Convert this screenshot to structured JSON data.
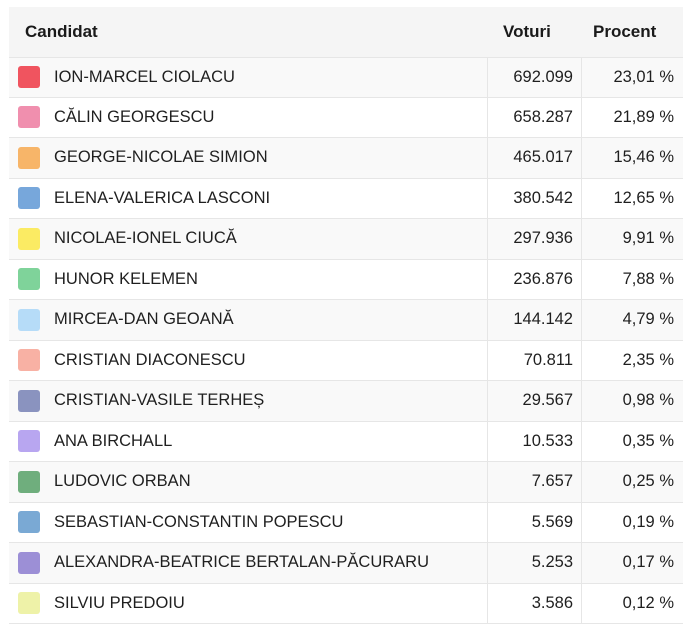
{
  "table": {
    "headers": {
      "candidate": "Candidat",
      "votes": "Voturi",
      "percent": "Procent"
    },
    "rows": [
      {
        "name": "ION-MARCEL CIOLACU",
        "votes": "692.099",
        "percent": "23,01 %",
        "color": "#f0545f"
      },
      {
        "name": "CĂLIN GEORGESCU",
        "votes": "658.287",
        "percent": "21,89 %",
        "color": "#f08fae"
      },
      {
        "name": "GEORGE-NICOLAE SIMION",
        "votes": "465.017",
        "percent": "15,46 %",
        "color": "#f7b569"
      },
      {
        "name": "ELENA-VALERICA LASCONI",
        "votes": "380.542",
        "percent": "12,65 %",
        "color": "#77a7db"
      },
      {
        "name": "NICOLAE-IONEL CIUCĂ",
        "votes": "297.936",
        "percent": "9,91 %",
        "color": "#fbeb63"
      },
      {
        "name": "HUNOR KELEMEN",
        "votes": "236.876",
        "percent": "7,88 %",
        "color": "#7fd39a"
      },
      {
        "name": "MIRCEA-DAN GEOANĂ",
        "votes": "144.142",
        "percent": "4,79 %",
        "color": "#b6dcf8"
      },
      {
        "name": "CRISTIAN DIACONESCU",
        "votes": "70.811",
        "percent": "2,35 %",
        "color": "#f8b1a4"
      },
      {
        "name": "CRISTIAN-VASILE TERHEȘ",
        "votes": "29.567",
        "percent": "0,98 %",
        "color": "#8a93bf"
      },
      {
        "name": "ANA BIRCHALL",
        "votes": "10.533",
        "percent": "0,35 %",
        "color": "#b8a6f0"
      },
      {
        "name": "LUDOVIC ORBAN",
        "votes": "7.657",
        "percent": "0,25 %",
        "color": "#6fae7d"
      },
      {
        "name": "SEBASTIAN-CONSTANTIN POPESCU",
        "votes": "5.569",
        "percent": "0,19 %",
        "color": "#7aa9d4"
      },
      {
        "name": "ALEXANDRA-BEATRICE BERTALAN-PĂCURARU",
        "votes": "5.253",
        "percent": "0,17 %",
        "color": "#9c8fd6"
      },
      {
        "name": "SILVIU PREDOIU",
        "votes": "3.586",
        "percent": "0,12 %",
        "color": "#eef2a8"
      }
    ]
  }
}
